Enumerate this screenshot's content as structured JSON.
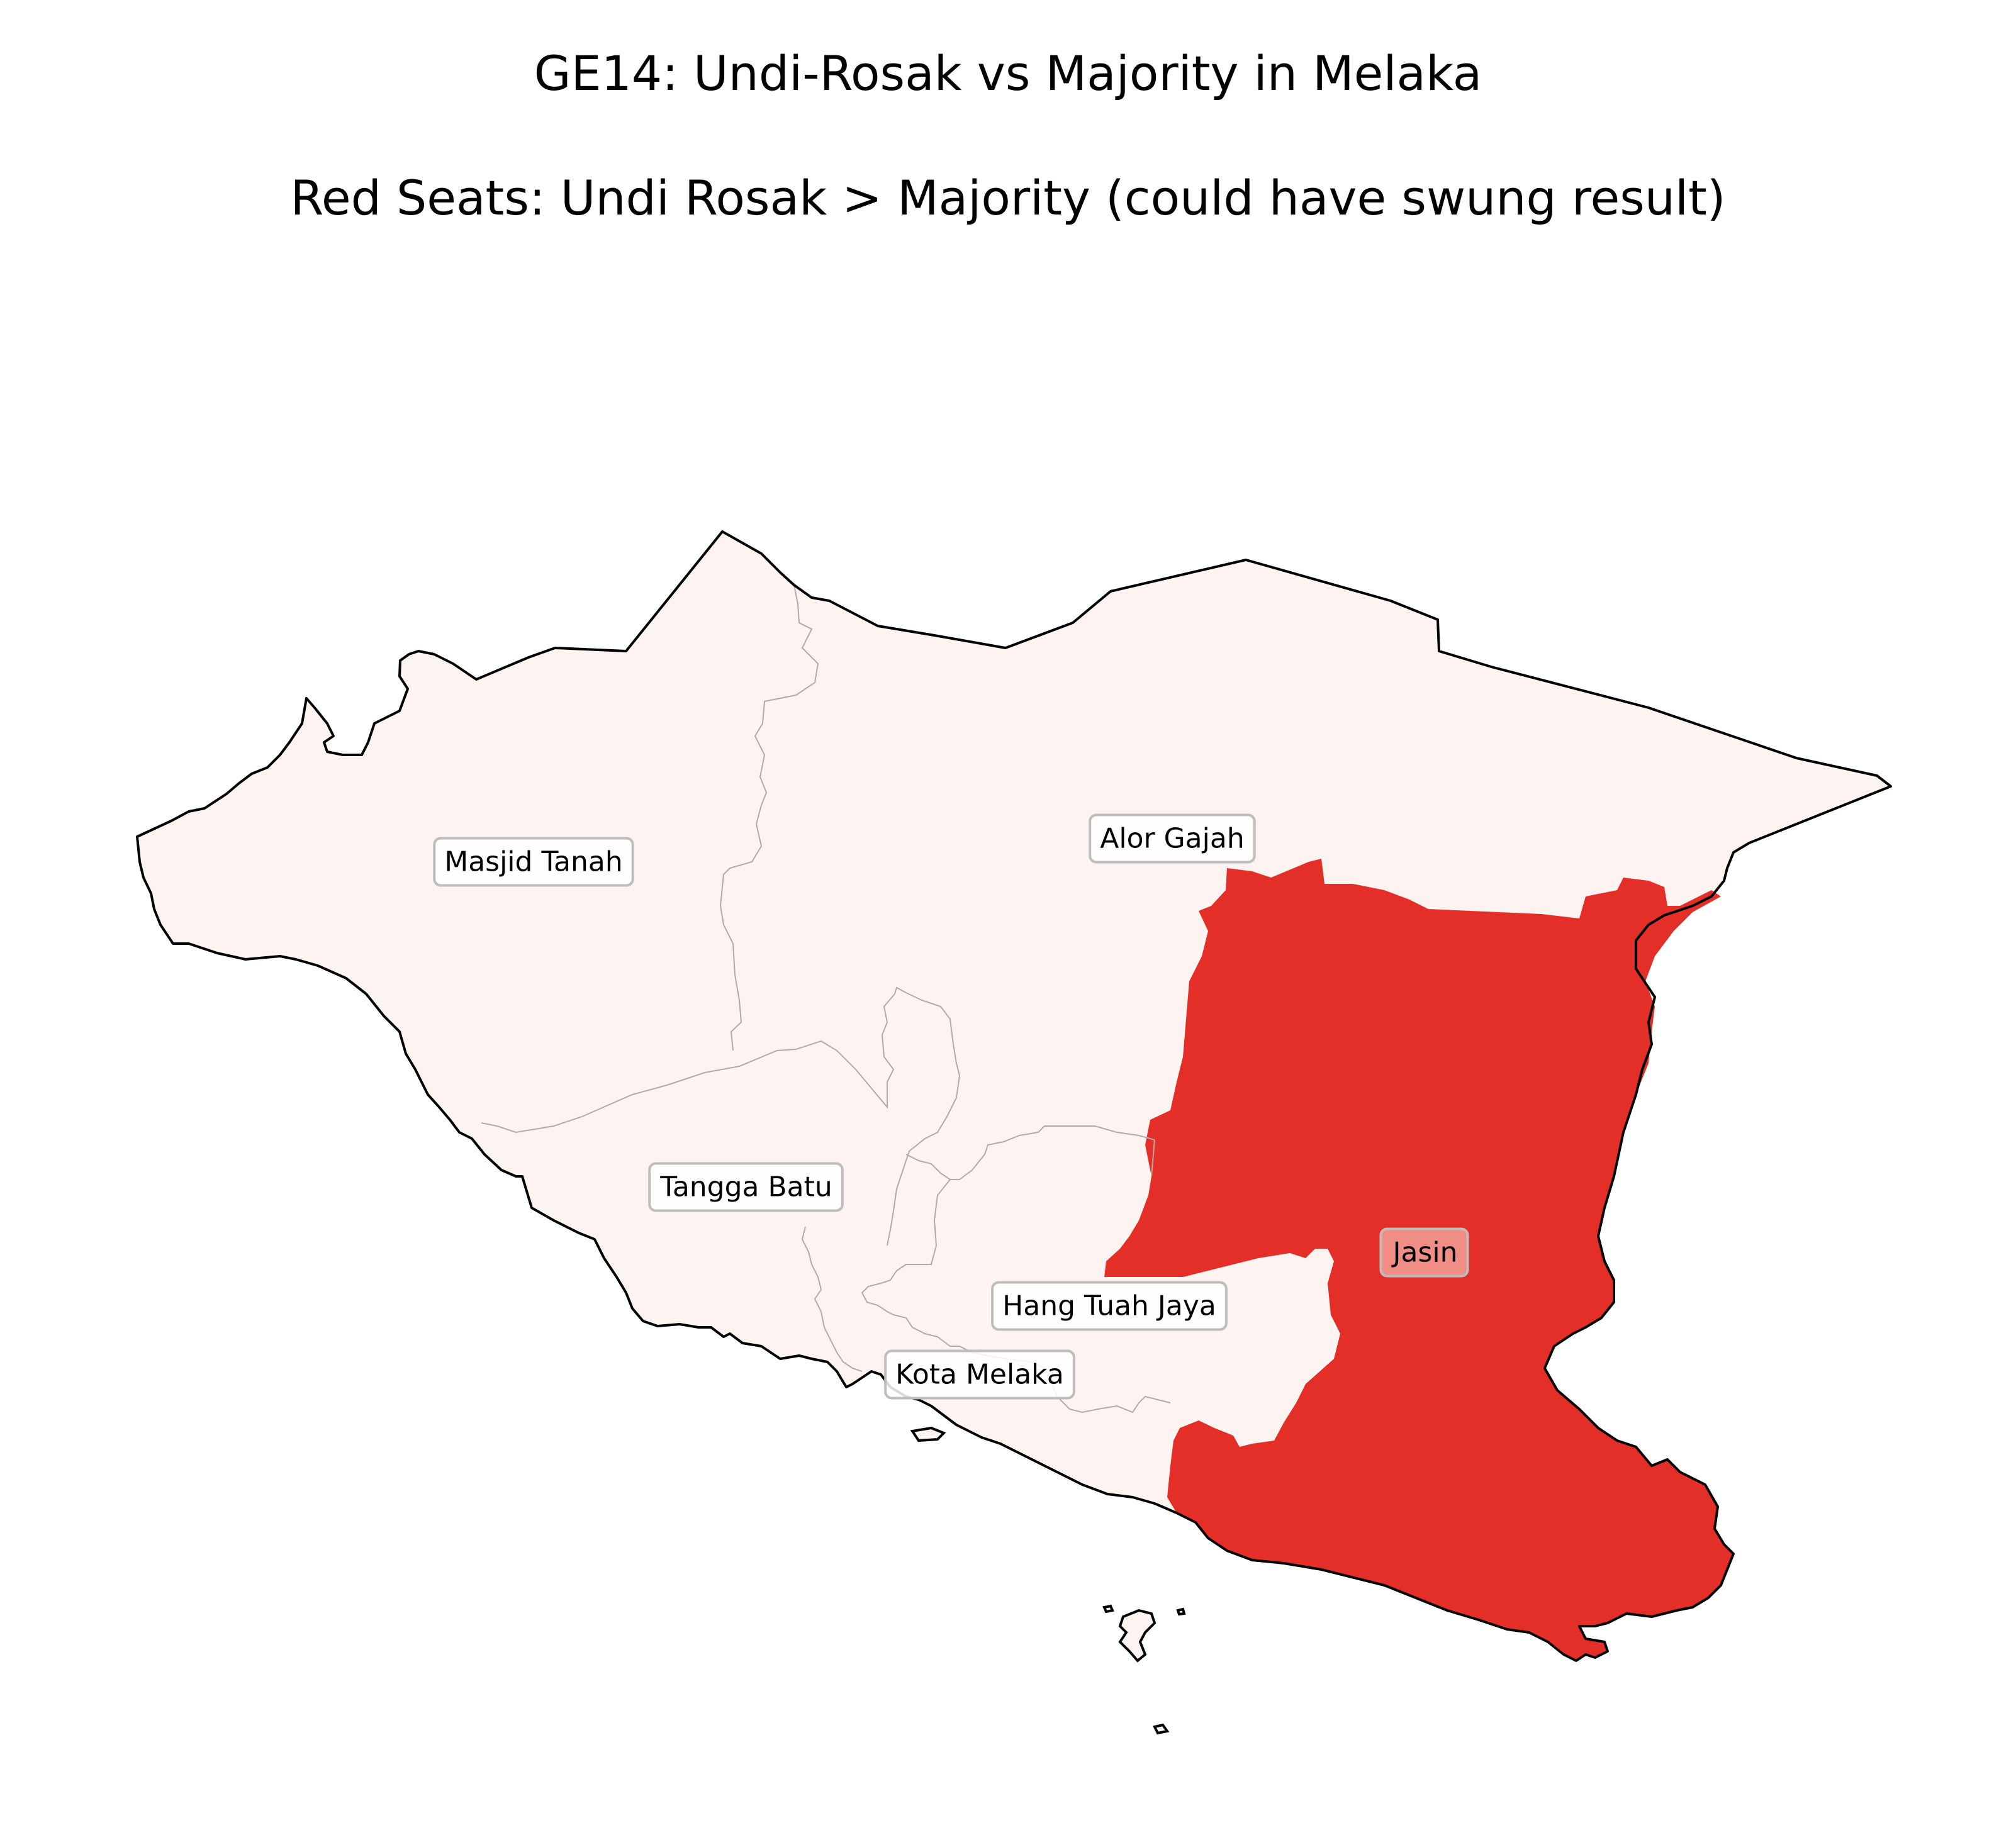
{
  "map": {
    "title": "GE14: Undi-Rosak vs Majority in Melaka",
    "subtitle": "Red Seats: Undi Rosak > Majority (could have swung result)",
    "colors": {
      "not_exceeded_fill": "#fdf4f1",
      "exceeded_fill": "#e32f27",
      "outline": "#000000",
      "internal_border": "#b5a9a6",
      "label_box_fill": "#ffffff",
      "label_box_fill_highlight": "#f29d97",
      "label_box_border": "#bdbdbd"
    },
    "seats": [
      {
        "name": "Masjid Tanah",
        "undi_rosak_exceeds_majority": false
      },
      {
        "name": "Alor Gajah",
        "undi_rosak_exceeds_majority": false
      },
      {
        "name": "Tangga Batu",
        "undi_rosak_exceeds_majority": false
      },
      {
        "name": "Hang Tuah Jaya",
        "undi_rosak_exceeds_majority": false
      },
      {
        "name": "Kota Melaka",
        "undi_rosak_exceeds_majority": false
      },
      {
        "name": "Jasin",
        "undi_rosak_exceeds_majority": true
      }
    ]
  }
}
